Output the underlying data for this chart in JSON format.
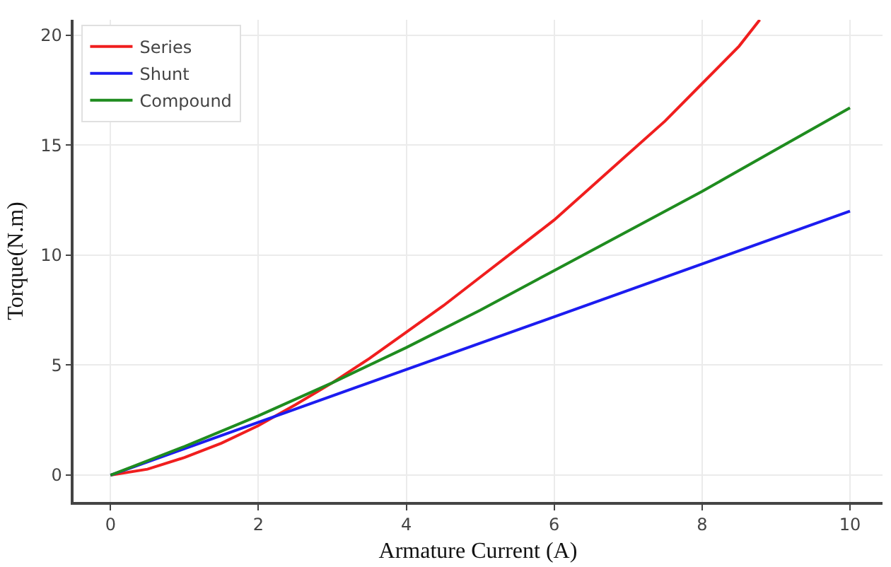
{
  "chart_data": {
    "type": "line",
    "xlabel": "Armature Current (A)",
    "ylabel": "Torque(N.m)",
    "xlim": [
      -0.5,
      10.44
    ],
    "ylim": [
      -1.22,
      20.7
    ],
    "xticks": [
      0,
      2,
      4,
      6,
      8,
      10
    ],
    "yticks": [
      0,
      5,
      10,
      15,
      20
    ],
    "grid": true,
    "legend": "top left",
    "line_style": "solid",
    "series": [
      {
        "name": "Series",
        "color": "#f01e1e",
        "x": [
          0,
          0.5,
          1,
          1.5,
          2,
          2.5,
          3,
          3.5,
          4,
          4.5,
          5,
          5.5,
          6,
          6.5,
          7,
          7.5,
          8,
          8.5,
          8.78
        ],
        "values": [
          0,
          0.27,
          0.8,
          1.45,
          2.25,
          3.2,
          4.2,
          5.3,
          6.5,
          7.7,
          9.0,
          10.3,
          11.6,
          13.1,
          14.6,
          16.1,
          17.8,
          19.5,
          20.7
        ]
      },
      {
        "name": "Shunt",
        "color": "#1c1cf0",
        "x": [
          0,
          10
        ],
        "values": [
          0,
          12
        ]
      },
      {
        "name": "Compound",
        "color": "#1f8c1f",
        "x": [
          0,
          1,
          2,
          3,
          4,
          5,
          6,
          7,
          8,
          9,
          10
        ],
        "values": [
          0,
          1.3,
          2.7,
          4.2,
          5.8,
          7.5,
          9.3,
          11.1,
          12.9,
          14.8,
          16.7
        ]
      }
    ]
  }
}
